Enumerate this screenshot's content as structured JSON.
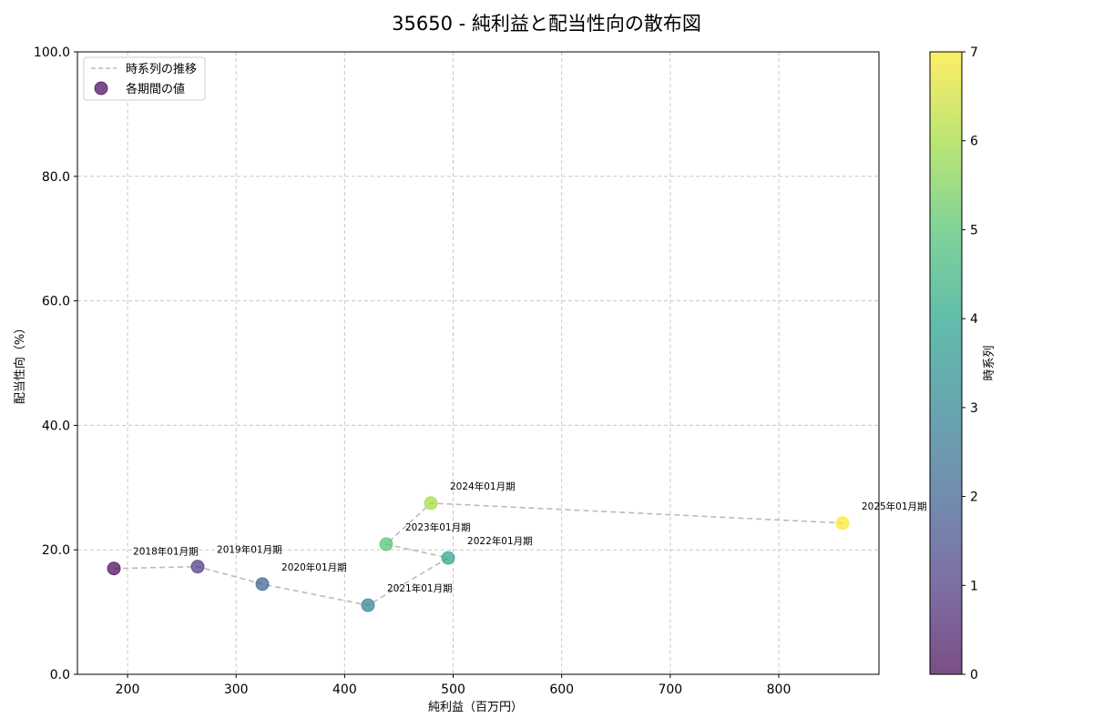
{
  "chart_data": {
    "type": "scatter",
    "title": "35650 - 純利益と配当性向の散布図",
    "xlabel": "純利益（百万円）",
    "ylabel": "配当性向（%）",
    "xlim": [
      153.8,
      892.3
    ],
    "ylim": [
      0,
      100
    ],
    "xticks": [
      200,
      300,
      400,
      500,
      600,
      700,
      800
    ],
    "xtick_labels": [
      "200",
      "300",
      "400",
      "500",
      "600",
      "700",
      "800"
    ],
    "yticks": [
      0,
      20,
      40,
      60,
      80,
      100
    ],
    "ytick_labels": [
      "0.0",
      "20.0",
      "40.0",
      "60.0",
      "80.0",
      "100.0"
    ],
    "grid": true,
    "legend": {
      "position": "upper left",
      "entries": [
        {
          "label": "時系列の推移",
          "marker": "dashed-line",
          "color": "#bbbbbb"
        },
        {
          "label": "各期間の値",
          "marker": "circle",
          "color": "#6a3d8a"
        }
      ]
    },
    "colorbar": {
      "label": "時系列",
      "colormap": "viridis",
      "range": [
        0,
        7
      ],
      "ticks": [
        0,
        1,
        2,
        3,
        4,
        5,
        6,
        7
      ],
      "tick_labels": [
        "0",
        "1",
        "2",
        "3",
        "4",
        "5",
        "6",
        "7"
      ]
    },
    "points": [
      {
        "label": "2018年01月期",
        "x": 187.4,
        "y": 17.0,
        "t": 0,
        "color": "#440154"
      },
      {
        "label": "2019年01月期",
        "x": 264.6,
        "y": 17.3,
        "t": 1,
        "color": "#46327e"
      },
      {
        "label": "2020年01月期",
        "x": 324.2,
        "y": 14.5,
        "t": 2,
        "color": "#365c8d"
      },
      {
        "label": "2021年01月期",
        "x": 421.5,
        "y": 11.1,
        "t": 3,
        "color": "#277f8e"
      },
      {
        "label": "2022年01月期",
        "x": 495.4,
        "y": 18.7,
        "t": 4,
        "color": "#1fa187"
      },
      {
        "label": "2023年01月期",
        "x": 438.3,
        "y": 20.9,
        "t": 5,
        "color": "#4ac16d"
      },
      {
        "label": "2024年01月期",
        "x": 479.4,
        "y": 27.5,
        "t": 6,
        "color": "#a0da39"
      },
      {
        "label": "2025年01月期",
        "x": 858.7,
        "y": 24.3,
        "t": 7,
        "color": "#fde725"
      }
    ],
    "line_style": {
      "color": "#bbbbbb",
      "dash": "dashed"
    },
    "marker_alpha": 0.7
  }
}
